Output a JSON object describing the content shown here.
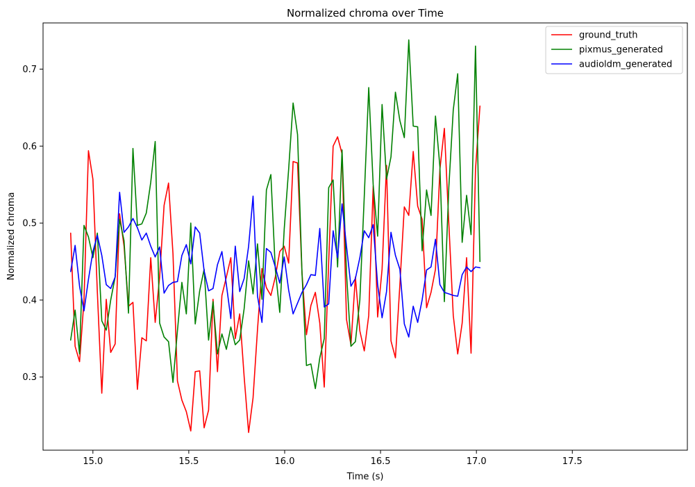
{
  "chart_data": {
    "type": "line",
    "title": "Normalized chroma over Time",
    "xlabel": "Time (s)",
    "ylabel": "Normalized chroma",
    "xlim": [
      14.74,
      18.1
    ],
    "ylim": [
      0.205,
      0.76
    ],
    "x_ticks": [
      15.0,
      15.5,
      16.0,
      16.5,
      17.0,
      17.5
    ],
    "x_tick_labels": [
      "15.0",
      "15.5",
      "16.0",
      "16.5",
      "17.0",
      "17.5"
    ],
    "y_ticks": [
      0.3,
      0.4,
      0.5,
      0.6,
      0.7
    ],
    "y_tick_labels": [
      "0.3",
      "0.4",
      "0.5",
      "0.6",
      "0.7"
    ],
    "grid": false,
    "legend_position": "top-right",
    "x_start": 14.884,
    "x_step": 0.0232,
    "series": [
      {
        "name": "ground_truth",
        "color": "#ff0000",
        "values": [
          0.487,
          0.34,
          0.32,
          0.4,
          0.594,
          0.557,
          0.41,
          0.279,
          0.401,
          0.332,
          0.343,
          0.512,
          0.47,
          0.392,
          0.397,
          0.284,
          0.351,
          0.347,
          0.455,
          0.371,
          0.43,
          0.523,
          0.552,
          0.46,
          0.295,
          0.27,
          0.255,
          0.23,
          0.307,
          0.308,
          0.234,
          0.257,
          0.401,
          0.307,
          0.406,
          0.43,
          0.455,
          0.35,
          0.382,
          0.3,
          0.228,
          0.273,
          0.362,
          0.441,
          0.416,
          0.406,
          0.43,
          0.463,
          0.47,
          0.448,
          0.58,
          0.578,
          0.435,
          0.355,
          0.393,
          0.41,
          0.37,
          0.287,
          0.45,
          0.6,
          0.612,
          0.59,
          0.375,
          0.342,
          0.43,
          0.36,
          0.334,
          0.38,
          0.548,
          0.378,
          0.44,
          0.575,
          0.347,
          0.325,
          0.42,
          0.521,
          0.51,
          0.593,
          0.522,
          0.505,
          0.39,
          0.41,
          0.44,
          0.57,
          0.623,
          0.5,
          0.38,
          0.33,
          0.37,
          0.455,
          0.331,
          0.57,
          0.652
        ]
      },
      {
        "name": "pixmus_generated",
        "color": "#008000",
        "values": [
          0.348,
          0.387,
          0.33,
          0.497,
          0.482,
          0.455,
          0.487,
          0.373,
          0.361,
          0.4,
          0.43,
          0.505,
          0.477,
          0.383,
          0.597,
          0.497,
          0.499,
          0.513,
          0.553,
          0.606,
          0.37,
          0.352,
          0.346,
          0.293,
          0.36,
          0.423,
          0.382,
          0.5,
          0.369,
          0.412,
          0.44,
          0.348,
          0.398,
          0.33,
          0.356,
          0.336,
          0.365,
          0.342,
          0.348,
          0.389,
          0.451,
          0.408,
          0.473,
          0.401,
          0.543,
          0.563,
          0.44,
          0.384,
          0.492,
          0.57,
          0.656,
          0.615,
          0.435,
          0.315,
          0.317,
          0.285,
          0.325,
          0.35,
          0.546,
          0.556,
          0.443,
          0.595,
          0.435,
          0.34,
          0.346,
          0.4,
          0.535,
          0.676,
          0.55,
          0.483,
          0.654,
          0.557,
          0.586,
          0.67,
          0.633,
          0.611,
          0.738,
          0.626,
          0.625,
          0.464,
          0.543,
          0.51,
          0.639,
          0.573,
          0.398,
          0.546,
          0.647,
          0.694,
          0.475,
          0.536,
          0.485,
          0.73,
          0.45
        ]
      },
      {
        "name": "audioldm_generated",
        "color": "#0000ff",
        "values": [
          0.437,
          0.471,
          0.418,
          0.386,
          0.427,
          0.463,
          0.484,
          0.458,
          0.42,
          0.415,
          0.43,
          0.54,
          0.488,
          0.495,
          0.506,
          0.494,
          0.478,
          0.487,
          0.47,
          0.456,
          0.469,
          0.409,
          0.419,
          0.423,
          0.424,
          0.458,
          0.472,
          0.447,
          0.495,
          0.487,
          0.438,
          0.412,
          0.415,
          0.446,
          0.463,
          0.42,
          0.376,
          0.47,
          0.411,
          0.428,
          0.47,
          0.535,
          0.405,
          0.371,
          0.467,
          0.462,
          0.443,
          0.422,
          0.456,
          0.413,
          0.382,
          0.396,
          0.41,
          0.42,
          0.433,
          0.432,
          0.493,
          0.391,
          0.395,
          0.49,
          0.455,
          0.525,
          0.47,
          0.418,
          0.428,
          0.455,
          0.49,
          0.481,
          0.498,
          0.42,
          0.377,
          0.411,
          0.488,
          0.458,
          0.44,
          0.369,
          0.352,
          0.392,
          0.371,
          0.4,
          0.439,
          0.443,
          0.479,
          0.42,
          0.41,
          0.408,
          0.406,
          0.405,
          0.433,
          0.443,
          0.437,
          0.443,
          0.442
        ]
      }
    ]
  }
}
